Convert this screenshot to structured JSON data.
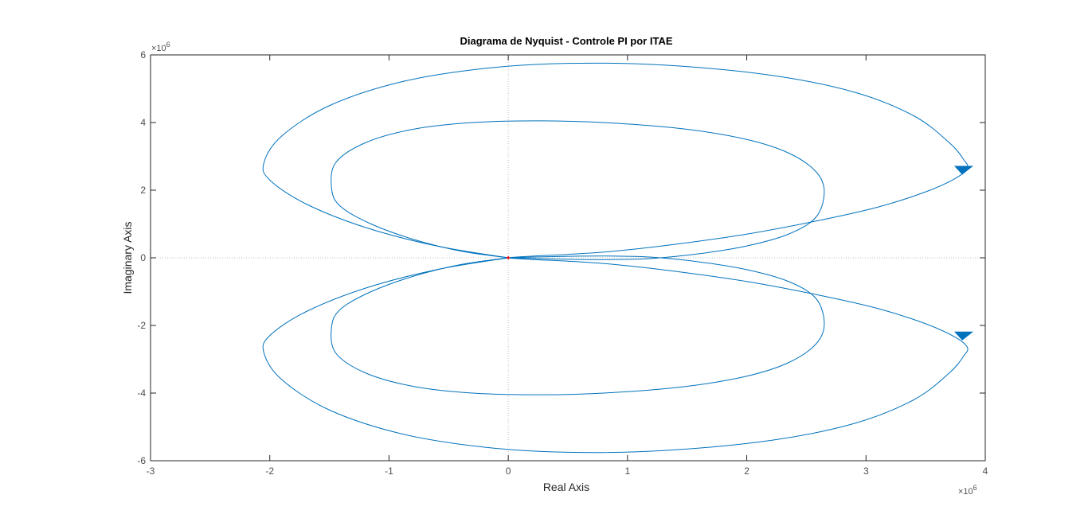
{
  "chart_data": {
    "type": "line",
    "title": "Diagrama de Nyquist - Controle PI por ITAE",
    "xlabel": "Real Axis",
    "ylabel": "Imaginary Axis",
    "xlim": [
      -3,
      4
    ],
    "ylim": [
      -6,
      6
    ],
    "x_ticks": [
      -3,
      -2,
      -1,
      0,
      1,
      2,
      3,
      4
    ],
    "y_ticks": [
      -6,
      -4,
      -2,
      0,
      2,
      4,
      6
    ],
    "x_tick_labels": [
      "-3",
      "-2",
      "-1",
      "0",
      "1",
      "2",
      "3",
      "4"
    ],
    "y_tick_labels": [
      "-6",
      "-4",
      "-2",
      "0",
      "2",
      "4",
      "6"
    ],
    "x_multiplier": "×10",
    "x_multiplier_exp": "6",
    "y_multiplier": "×10",
    "y_multiplier_exp": "6",
    "grid": false,
    "colors": {
      "curve": "#0072BD",
      "origin_marker": "#ff0000",
      "axis": "#262626",
      "zero_lines": "#bdbdbd"
    },
    "series": [
      {
        "x": [
          0,
          0.02,
          0.1,
          0.25,
          0.5,
          0.9,
          1.4,
          2.0,
          2.6,
          3.1,
          3.5,
          3.75,
          3.85,
          3.82,
          3.7,
          3.4,
          2.9,
          2.2,
          1.3,
          0.5,
          -0.2,
          -0.9,
          -1.5,
          -1.9,
          -2.05,
          -2.0,
          -1.7,
          -1.2,
          -0.6,
          0
        ],
        "y": [
          0,
          0.01,
          0.03,
          0.06,
          0.1,
          0.2,
          0.4,
          0.7,
          1.1,
          1.5,
          1.95,
          2.35,
          2.65,
          2.9,
          3.4,
          4.2,
          4.9,
          5.4,
          5.7,
          5.75,
          5.6,
          5.2,
          4.5,
          3.6,
          2.8,
          2.3,
          1.6,
          0.9,
          0.35,
          0
        ]
      },
      {
        "x": [
          0,
          0.3,
          0.6,
          0.9,
          1.2,
          1.6,
          2.0,
          2.35,
          2.58,
          2.65,
          2.58,
          2.35,
          2.0,
          1.5,
          0.9,
          0.3,
          -0.3,
          -0.8,
          -1.2,
          -1.45,
          -1.48,
          -1.4,
          -1.15,
          -0.8,
          -0.4,
          0
        ],
        "y": [
          0,
          -0.03,
          -0.05,
          -0.05,
          -0.02,
          0.12,
          0.35,
          0.7,
          1.2,
          1.95,
          2.55,
          3.1,
          3.5,
          3.8,
          3.98,
          4.05,
          4.0,
          3.8,
          3.4,
          2.8,
          2.0,
          1.5,
          1.0,
          0.55,
          0.2,
          0
        ]
      },
      {
        "x": [
          0,
          0.02,
          0.1,
          0.25,
          0.5,
          0.9,
          1.4,
          2.0,
          2.6,
          3.1,
          3.5,
          3.75,
          3.85,
          3.82,
          3.7,
          3.4,
          2.9,
          2.2,
          1.3,
          0.5,
          -0.2,
          -0.9,
          -1.5,
          -1.9,
          -2.05,
          -2.0,
          -1.7,
          -1.2,
          -0.6,
          0
        ],
        "y": [
          0,
          -0.01,
          -0.03,
          -0.06,
          -0.1,
          -0.2,
          -0.4,
          -0.7,
          -1.1,
          -1.5,
          -1.95,
          -2.35,
          -2.65,
          -2.9,
          -3.4,
          -4.2,
          -4.9,
          -5.4,
          -5.7,
          -5.75,
          -5.6,
          -5.2,
          -4.5,
          -3.6,
          -2.8,
          -2.3,
          -1.6,
          -0.9,
          -0.35,
          0
        ]
      },
      {
        "x": [
          0,
          0.3,
          0.6,
          0.9,
          1.2,
          1.6,
          2.0,
          2.35,
          2.58,
          2.65,
          2.58,
          2.35,
          2.0,
          1.5,
          0.9,
          0.3,
          -0.3,
          -0.8,
          -1.2,
          -1.45,
          -1.48,
          -1.4,
          -1.15,
          -0.8,
          -0.4,
          0
        ],
        "y": [
          0,
          0.03,
          0.05,
          0.05,
          0.02,
          -0.12,
          -0.35,
          -0.7,
          -1.2,
          -1.95,
          -2.55,
          -3.1,
          -3.5,
          -3.8,
          -3.98,
          -4.05,
          -4.0,
          -3.8,
          -3.4,
          -2.8,
          -2.0,
          -1.5,
          -1.0,
          -0.55,
          -0.2,
          0
        ]
      }
    ],
    "arrows": [
      {
        "x": 3.82,
        "y": 2.6,
        "direction": "down"
      },
      {
        "x": 3.82,
        "y": -2.3,
        "direction": "down"
      }
    ]
  }
}
